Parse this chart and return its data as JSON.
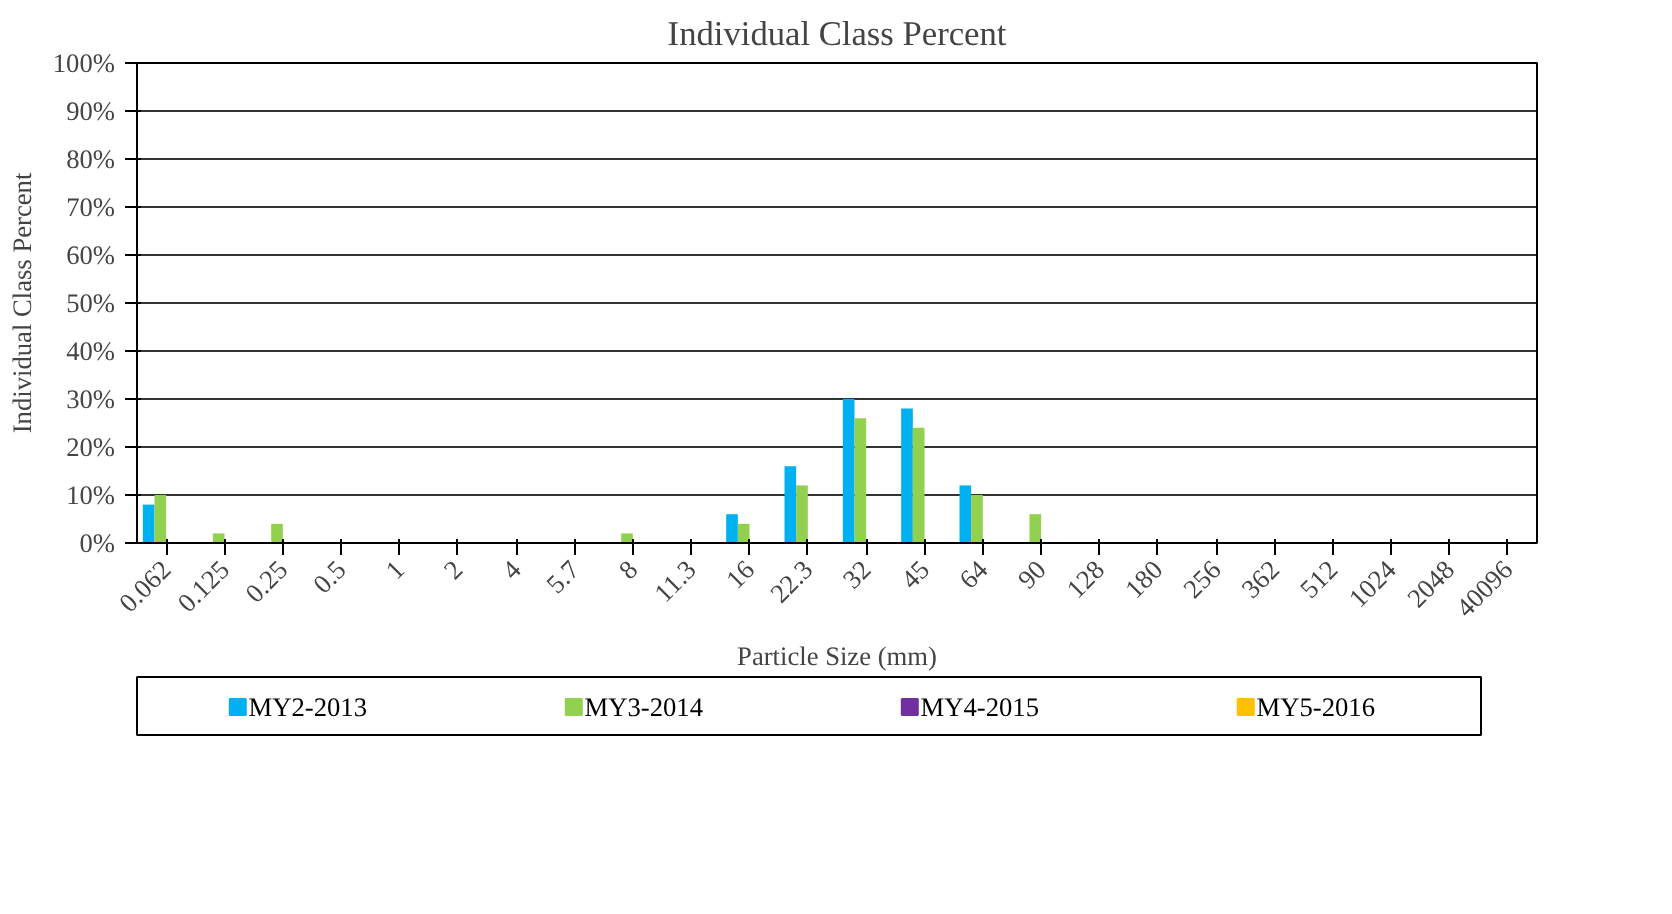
{
  "chart_data": {
    "type": "bar",
    "title": "Individual Class Percent",
    "xlabel": "Particle Size (mm)",
    "ylabel": "Individual Class Percent",
    "categories": [
      "0.062",
      "0.125",
      "0.25",
      "0.5",
      "1",
      "2",
      "4",
      "5.7",
      "8",
      "11.3",
      "16",
      "22.3",
      "32",
      "45",
      "64",
      "90",
      "128",
      "180",
      "256",
      "362",
      "512",
      "1024",
      "2048",
      "40096"
    ],
    "series": [
      {
        "name": "MY2-2013",
        "color": "#00b0f0",
        "values": [
          8,
          0,
          0,
          0,
          0,
          0,
          0,
          0,
          0,
          0,
          6,
          16,
          30,
          28,
          12,
          0,
          0,
          0,
          0,
          0,
          0,
          0,
          0,
          0
        ]
      },
      {
        "name": "MY3-2014",
        "color": "#92d050",
        "values": [
          10,
          2,
          4,
          0,
          0,
          0,
          0,
          0,
          2,
          0,
          4,
          12,
          26,
          24,
          10,
          6,
          0,
          0,
          0,
          0,
          0,
          0,
          0,
          0
        ]
      },
      {
        "name": "MY4-2015",
        "color": "#7030a0",
        "values": [
          0,
          0,
          0,
          0,
          0,
          0,
          0,
          0,
          0,
          0,
          0,
          0,
          0,
          0,
          0,
          0,
          0,
          0,
          0,
          0,
          0,
          0,
          0,
          0
        ]
      },
      {
        "name": "MY5-2016",
        "color": "#ffc000",
        "values": [
          0,
          0,
          0,
          0,
          0,
          0,
          0,
          0,
          0,
          0,
          0,
          0,
          0,
          0,
          0,
          0,
          0,
          0,
          0,
          0,
          0,
          0,
          0,
          0
        ]
      }
    ],
    "ylim": [
      0,
      100
    ],
    "yticks": [
      {
        "value": 0,
        "label": "0%"
      },
      {
        "value": 10,
        "label": "10%"
      },
      {
        "value": 20,
        "label": "20%"
      },
      {
        "value": 30,
        "label": "30%"
      },
      {
        "value": 40,
        "label": "40%"
      },
      {
        "value": 50,
        "label": "50%"
      },
      {
        "value": 60,
        "label": "60%"
      },
      {
        "value": 70,
        "label": "70%"
      },
      {
        "value": 80,
        "label": "80%"
      },
      {
        "value": 90,
        "label": "90%"
      },
      {
        "value": 100,
        "label": "100%"
      }
    ],
    "grid": "y",
    "legend": "bottom"
  }
}
